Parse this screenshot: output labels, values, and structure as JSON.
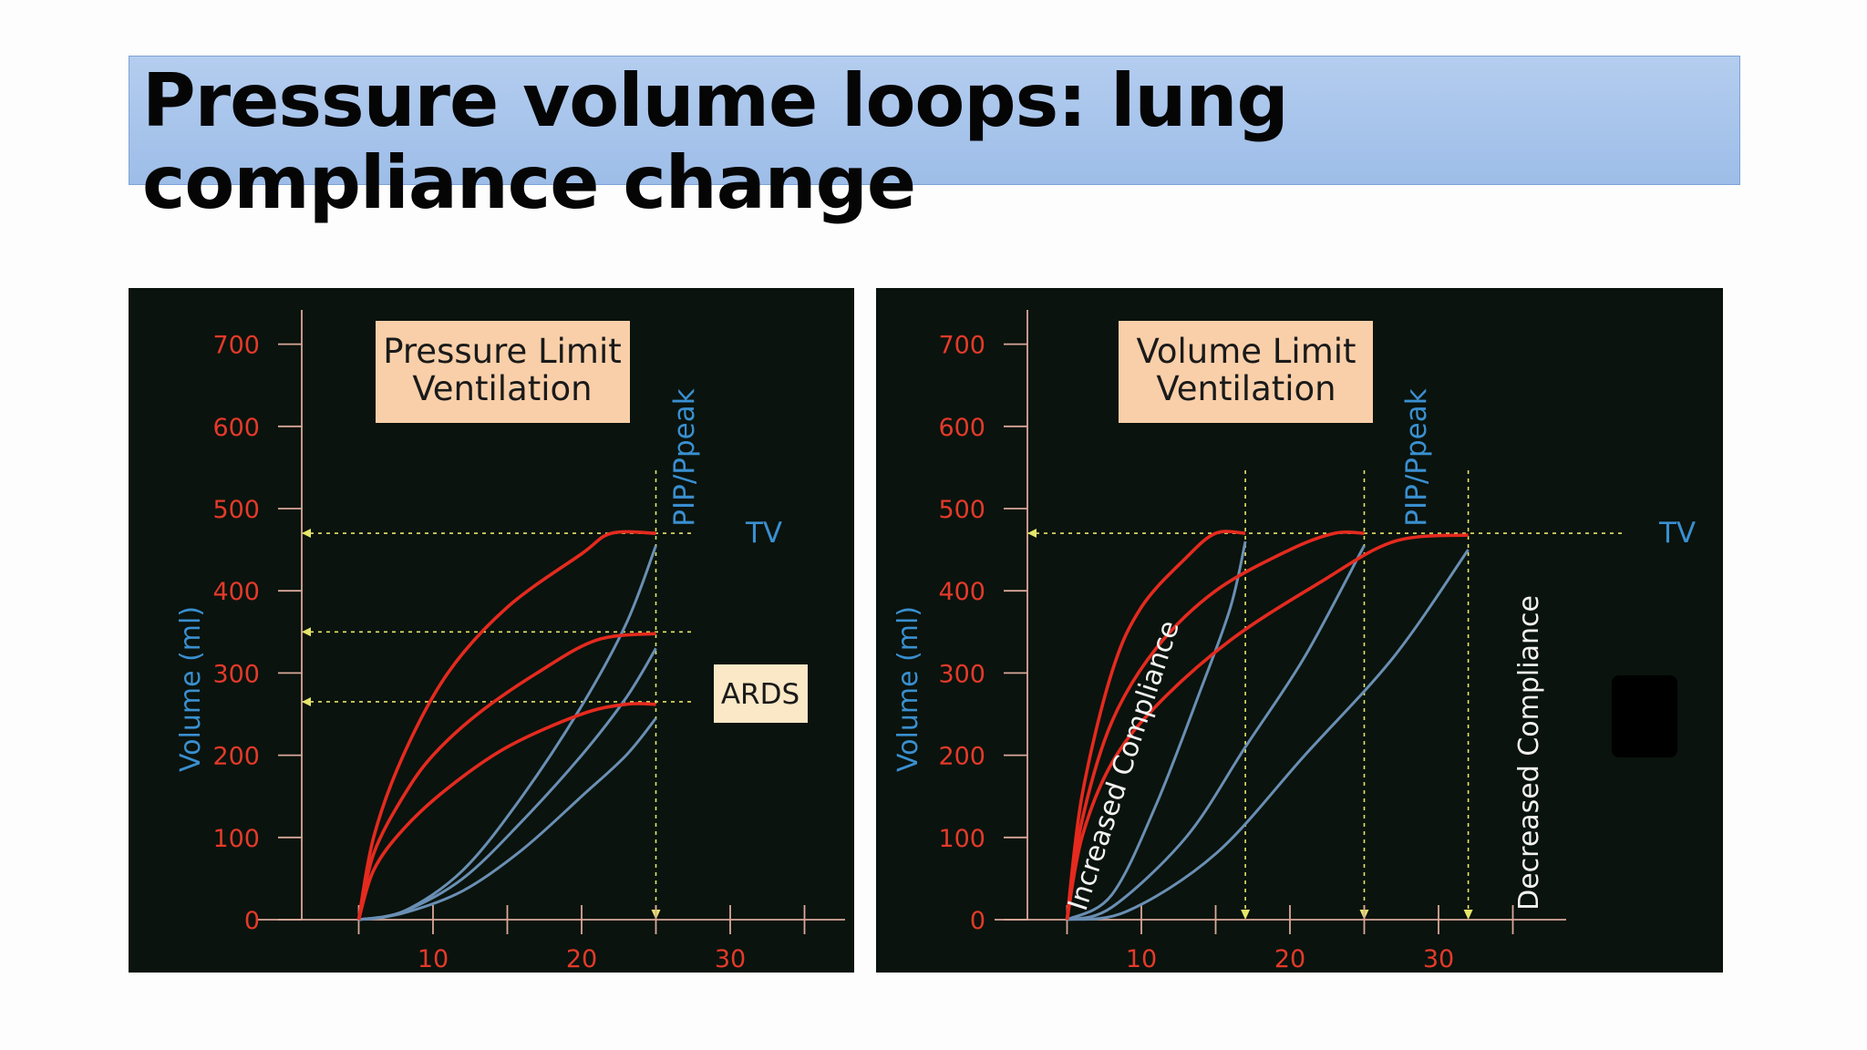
{
  "slide": {
    "title": "Pressure volume loops: lung compliance change"
  },
  "colors": {
    "title_bg": "#a9c6ec",
    "panel_bg": "#0a130d",
    "inspiration_curve": "#e52a1f",
    "expiration_curve": "#6a8fb4",
    "tick_labels": "#e43a2a",
    "blue_labels": "#3a8fd0",
    "guide_lines": "#e5e56a",
    "box_fill": "#f9cfa9"
  },
  "chart_data": [
    {
      "type": "line",
      "box_label": [
        "Pressure Limit",
        "Ventilation"
      ],
      "ylabel": "Volume (ml)",
      "xlabel": "",
      "yticks": [
        0,
        100,
        200,
        300,
        400,
        500,
        600,
        700
      ],
      "xticks": [
        10,
        20,
        30
      ],
      "xlim": [
        0,
        35
      ],
      "ylim": [
        0,
        700
      ],
      "vline_label": "PIP/Ppeak",
      "pip_pressure": 25,
      "tv_label": "TV",
      "ards_label": "ARDS",
      "levels": [
        470,
        350,
        265
      ],
      "series": [
        {
          "inspiration": [
            [
              5,
              0
            ],
            [
              6,
              100
            ],
            [
              8,
              200
            ],
            [
              11,
              300
            ],
            [
              15,
              380
            ],
            [
              20,
              445
            ],
            [
              22,
              470
            ],
            [
              25,
              470
            ]
          ],
          "expiration": [
            [
              5,
              0
            ],
            [
              8,
              10
            ],
            [
              12,
              60
            ],
            [
              16,
              150
            ],
            [
              20,
              260
            ],
            [
              23,
              360
            ],
            [
              25,
              455
            ]
          ]
        },
        {
          "inspiration": [
            [
              5,
              0
            ],
            [
              6,
              80
            ],
            [
              8,
              150
            ],
            [
              10,
              200
            ],
            [
              13,
              250
            ],
            [
              17,
              300
            ],
            [
              21,
              340
            ],
            [
              25,
              348
            ]
          ],
          "expiration": [
            [
              5,
              0
            ],
            [
              8,
              10
            ],
            [
              12,
              50
            ],
            [
              16,
              120
            ],
            [
              20,
              200
            ],
            [
              23,
              270
            ],
            [
              25,
              330
            ]
          ]
        },
        {
          "inspiration": [
            [
              5,
              0
            ],
            [
              6,
              60
            ],
            [
              8,
              110
            ],
            [
              11,
              160
            ],
            [
              15,
              210
            ],
            [
              20,
              250
            ],
            [
              23,
              262
            ],
            [
              25,
              262
            ]
          ],
          "expiration": [
            [
              5,
              0
            ],
            [
              8,
              8
            ],
            [
              12,
              35
            ],
            [
              16,
              85
            ],
            [
              20,
              150
            ],
            [
              23,
              200
            ],
            [
              25,
              245
            ]
          ]
        }
      ]
    },
    {
      "type": "line",
      "box_label": [
        "Volume Limit",
        "Ventilation"
      ],
      "ylabel": "Volume (ml)",
      "xlabel": "",
      "yticks": [
        0,
        100,
        200,
        300,
        400,
        500,
        600,
        700
      ],
      "xticks": [
        10,
        20,
        30
      ],
      "xlim": [
        0,
        35
      ],
      "ylim": [
        0,
        700
      ],
      "vline_label": "PIP/Ppeak",
      "tv_label": "TV",
      "tidal_volume": 470,
      "peak_pressures": [
        17,
        25,
        32
      ],
      "increased_label": "Increased Compliance",
      "decreased_label": "Decreased Compliance",
      "series": [
        {
          "inspiration": [
            [
              5,
              0
            ],
            [
              6,
              150
            ],
            [
              8,
              300
            ],
            [
              10,
              380
            ],
            [
              13,
              440
            ],
            [
              15,
              470
            ],
            [
              17,
              470
            ]
          ],
          "expiration": [
            [
              5,
              0
            ],
            [
              8,
              30
            ],
            [
              11,
              140
            ],
            [
              14,
              280
            ],
            [
              16,
              380
            ],
            [
              17,
              460
            ]
          ]
        },
        {
          "inspiration": [
            [
              5,
              0
            ],
            [
              6,
              120
            ],
            [
              8,
              240
            ],
            [
              11,
              330
            ],
            [
              15,
              400
            ],
            [
              20,
              450
            ],
            [
              23,
              470
            ],
            [
              25,
              470
            ]
          ],
          "expiration": [
            [
              5,
              0
            ],
            [
              8,
              15
            ],
            [
              13,
              100
            ],
            [
              17,
              210
            ],
            [
              21,
              320
            ],
            [
              25,
              455
            ]
          ]
        },
        {
          "inspiration": [
            [
              5,
              0
            ],
            [
              6,
              100
            ],
            [
              8,
              190
            ],
            [
              11,
              260
            ],
            [
              16,
              340
            ],
            [
              22,
              410
            ],
            [
              27,
              460
            ],
            [
              32,
              468
            ]
          ],
          "expiration": [
            [
              5,
              0
            ],
            [
              9,
              10
            ],
            [
              15,
              80
            ],
            [
              21,
              200
            ],
            [
              27,
              320
            ],
            [
              32,
              450
            ]
          ]
        }
      ]
    }
  ]
}
